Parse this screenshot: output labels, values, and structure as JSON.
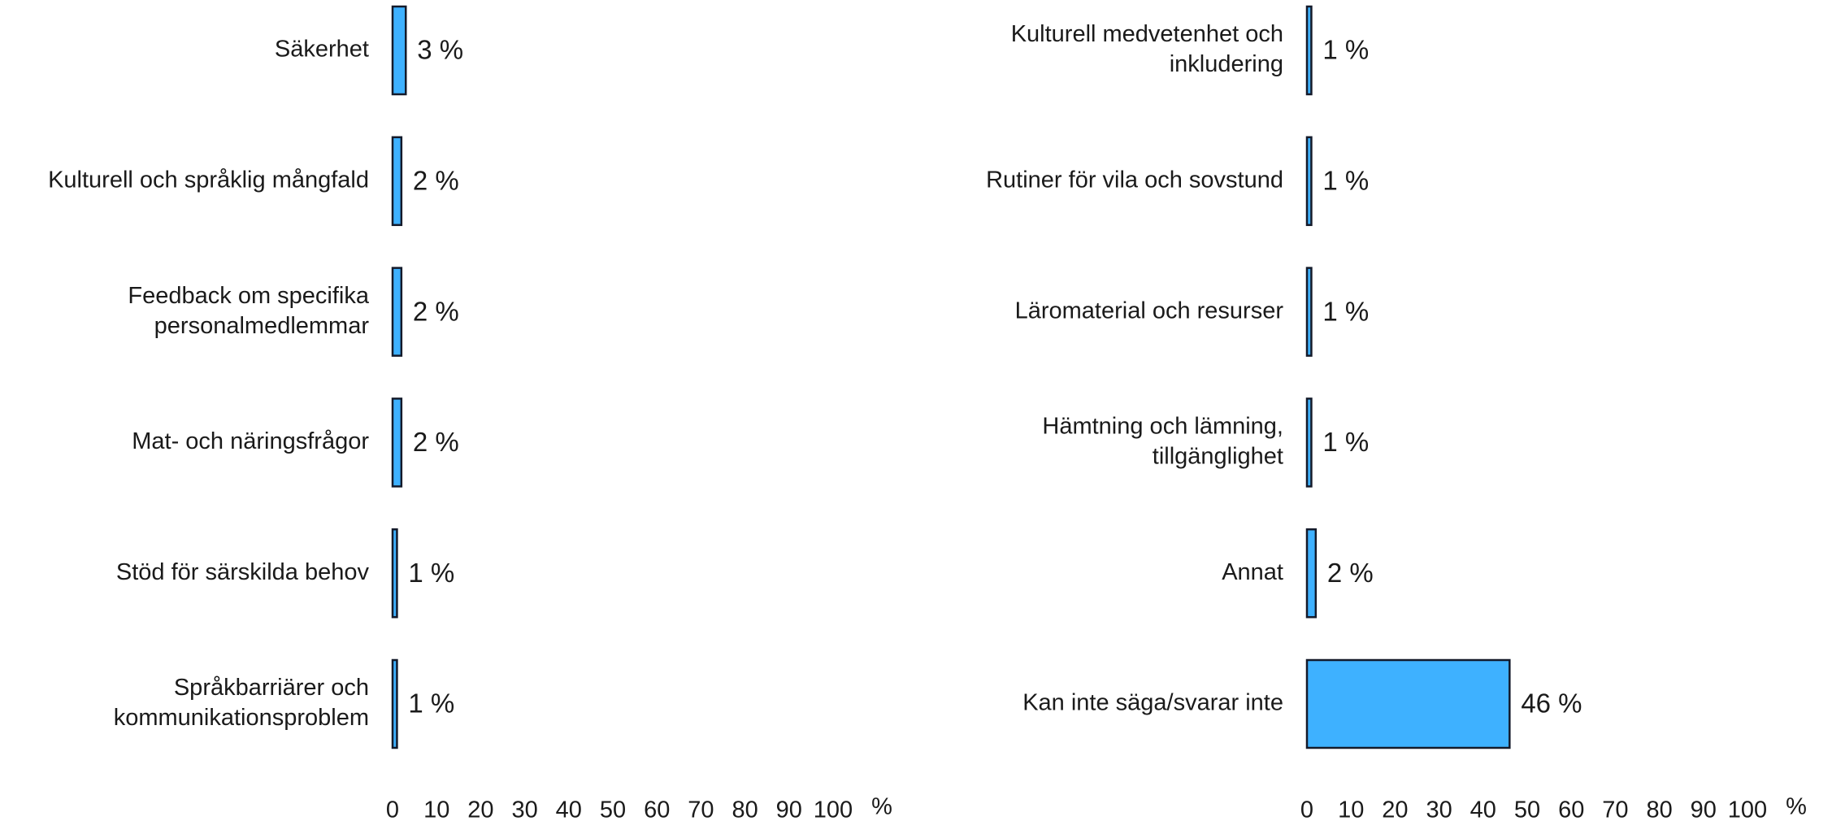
{
  "chart_data": [
    {
      "type": "barh",
      "categories": [
        [
          "Säkerhet"
        ],
        [
          "Kulturell och språklig mångfald"
        ],
        [
          "Feedback om specifika",
          "personalmedlemmar"
        ],
        [
          "Mat- och näringsfrågor"
        ],
        [
          "Stöd för särskilda behov"
        ],
        [
          "Språkbarriärer och",
          "kommunikationsproblem"
        ]
      ],
      "values": [
        3,
        2,
        2,
        2,
        1,
        1
      ],
      "value_labels": [
        "3 %",
        "2 %",
        "2 %",
        "2 %",
        "1 %",
        "1 %"
      ],
      "color": "#3eb1ff",
      "xlim": [
        0,
        100
      ],
      "xticks": [
        0,
        10,
        20,
        30,
        40,
        50,
        60,
        70,
        80,
        90,
        100
      ],
      "xlabel": "%"
    },
    {
      "type": "barh",
      "categories": [
        [
          "Kulturell medvetenhet och",
          "inkludering"
        ],
        [
          "Rutiner för vila och sovstund"
        ],
        [
          "Läromaterial och resurser"
        ],
        [
          "Hämtning och lämning,",
          "tillgänglighet"
        ],
        [
          "Annat"
        ],
        [
          "Kan inte säga/svarar inte"
        ]
      ],
      "values": [
        1,
        1,
        1,
        1,
        2,
        46
      ],
      "value_labels": [
        "1 %",
        "1 %",
        "1 %",
        "1 %",
        "2 %",
        "46 %"
      ],
      "color": "#3eb1ff",
      "xlim": [
        0,
        100
      ],
      "xticks": [
        0,
        10,
        20,
        30,
        40,
        50,
        60,
        70,
        80,
        90,
        100
      ],
      "xlabel": "%"
    }
  ]
}
